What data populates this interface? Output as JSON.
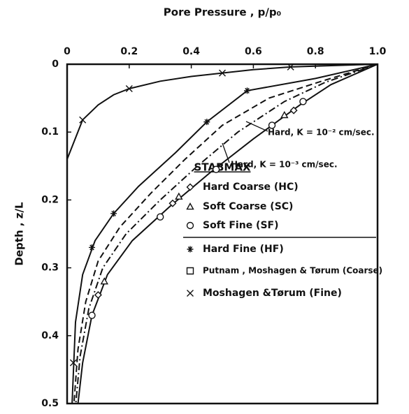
{
  "chart_data": {
    "type": "line",
    "xlabel": "Pore Pressure , p/p₀",
    "ylabel": "Depth , z/L",
    "xlim": [
      0,
      1.0
    ],
    "xticks": [
      0,
      0.2,
      0.4,
      0.6,
      0.8,
      {
        "value": 1.0,
        "label": "1.0"
      }
    ],
    "ylim": [
      0,
      0.5
    ],
    "yticks": [
      0,
      0.1,
      0.2,
      0.3,
      0.4,
      0.5
    ],
    "y_inverted": true,
    "x_axis_position": "top",
    "series": [
      {
        "style": "solid",
        "color": "#111111",
        "x": [
          0,
          0.05,
          0.1,
          0.15,
          0.2,
          0.3,
          0.4,
          0.5,
          0.6,
          0.72,
          0.85,
          1.0
        ],
        "values": [
          0.14,
          0.082,
          0.06,
          0.045,
          0.036,
          0.025,
          0.018,
          0.013,
          0.008,
          0.004,
          0.002,
          0
        ]
      },
      {
        "style": "solid",
        "color": "#111111",
        "x": [
          1.0,
          0.8,
          0.58,
          0.45,
          0.35,
          0.23,
          0.15,
          0.09,
          0.05,
          0.027,
          0.016
        ],
        "values": [
          0,
          0.021,
          0.039,
          0.085,
          0.13,
          0.18,
          0.22,
          0.26,
          0.31,
          0.38,
          0.5
        ]
      },
      {
        "style": "dashed",
        "color": "#111111",
        "x": [
          1.0,
          0.82,
          0.65,
          0.5,
          0.38,
          0.27,
          0.17,
          0.1,
          0.06,
          0.035,
          0.022
        ],
        "values": [
          0,
          0.025,
          0.05,
          0.09,
          0.14,
          0.19,
          0.24,
          0.29,
          0.35,
          0.42,
          0.5
        ]
      },
      {
        "style": "dashdot",
        "color": "#111111",
        "x": [
          1.0,
          0.83,
          0.7,
          0.55,
          0.42,
          0.3,
          0.19,
          0.115,
          0.07,
          0.042,
          0.028
        ],
        "values": [
          0,
          0.027,
          0.055,
          0.1,
          0.15,
          0.2,
          0.25,
          0.3,
          0.36,
          0.43,
          0.5
        ]
      },
      {
        "style": "solid",
        "color": "#111111",
        "x": [
          1.0,
          0.85,
          0.75,
          0.6,
          0.46,
          0.33,
          0.21,
          0.13,
          0.08,
          0.05,
          0.035
        ],
        "values": [
          0,
          0.03,
          0.06,
          0.11,
          0.16,
          0.21,
          0.26,
          0.31,
          0.37,
          0.44,
          0.5
        ]
      }
    ],
    "legend_title": "STABMAX",
    "markers": [
      {
        "name": "Hard Coarse (HC)",
        "marker": "diamond",
        "x": [
          0.73,
          0.34,
          0.1
        ],
        "values": [
          0.068,
          0.205,
          0.34
        ]
      },
      {
        "name": "Soft Coarse (SC)",
        "marker": "triangle",
        "x": [
          0.7,
          0.36,
          0.12
        ],
        "values": [
          0.075,
          0.195,
          0.32
        ]
      },
      {
        "name": "Soft Fine (SF)",
        "marker": "circle",
        "x": [
          0.76,
          0.66,
          0.48,
          0.3,
          0.08
        ],
        "values": [
          0.055,
          0.09,
          0.155,
          0.225,
          0.37
        ]
      },
      {
        "name": "Hard Fine (HF)",
        "marker": "asterisk",
        "x": [
          0.58,
          0.45,
          0.15,
          0.08
        ],
        "values": [
          0.039,
          0.085,
          0.22,
          0.27
        ]
      },
      {
        "name": "Putnam , Moshagen & Tørum (Coarse)",
        "marker": "square",
        "x": [],
        "values": []
      },
      {
        "name": "Moshagen &Tørum (Fine)",
        "marker": "x",
        "x": [
          0.05,
          0.2,
          0.5,
          0.72,
          0.02
        ],
        "values": [
          0.082,
          0.036,
          0.013,
          0.004,
          0.44
        ]
      }
    ],
    "annotations": [
      {
        "text": "Hard, K = 10⁻² cm/sec."
      },
      {
        "text": "Hard, K = 10⁻³ cm/sec."
      }
    ]
  }
}
